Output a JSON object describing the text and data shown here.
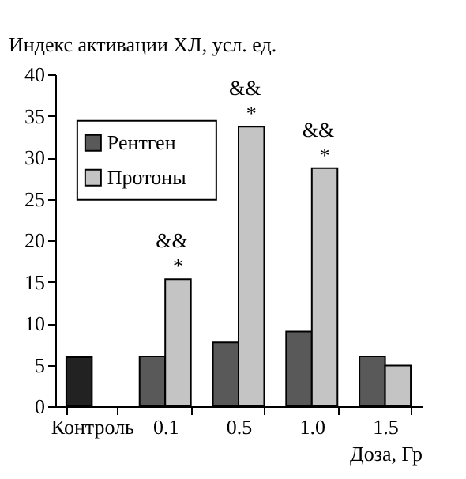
{
  "chart_data": {
    "type": "bar",
    "ylabel": "Индекс активации ХЛ, усл. ед.",
    "xlabel": "Доза, Гр",
    "categories": [
      "Контроль",
      "0.1",
      "0.5",
      "1.0",
      "1.5"
    ],
    "series": [
      {
        "name": "Рентген",
        "color": "#595959",
        "colors": [
          "#222222",
          "#595959",
          "#595959",
          "#595959",
          "#595959"
        ],
        "values": [
          5.9,
          6.0,
          7.7,
          9.0,
          6.0
        ]
      },
      {
        "name": "Протоны",
        "color": "#c4c4c4",
        "values": [
          null,
          15.3,
          33.7,
          28.7,
          4.9
        ]
      }
    ],
    "ylim": [
      0,
      40
    ],
    "yticks": [
      0,
      5,
      10,
      15,
      20,
      25,
      30,
      35,
      40
    ],
    "grid": false,
    "legend": "top left",
    "annotations": [
      {
        "text": "&&",
        "x": "0.1",
        "y": 15.3
      },
      {
        "text": "*",
        "x": "0.1",
        "y": 15.3
      },
      {
        "text": "&&",
        "x": "0.5",
        "y": 33.7
      },
      {
        "text": "*",
        "x": "0.5",
        "y": 33.7
      },
      {
        "text": "&&",
        "x": "1.0",
        "y": 28.7
      },
      {
        "text": "*",
        "x": "1.0",
        "y": 28.7
      }
    ]
  }
}
